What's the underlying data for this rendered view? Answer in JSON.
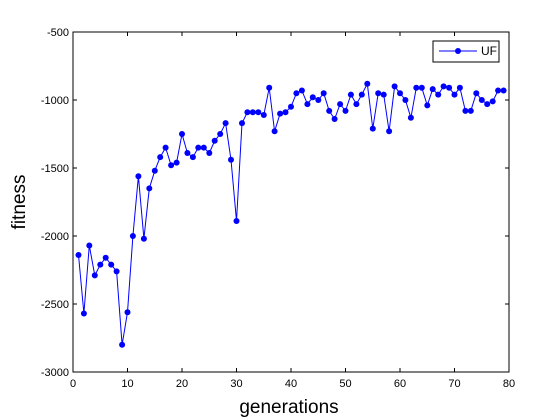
{
  "chart_data": {
    "type": "line",
    "title": "",
    "xlabel": "generations",
    "ylabel": "fitness",
    "xlim": [
      0,
      80
    ],
    "ylim": [
      -3000,
      -500
    ],
    "xticks": [
      0,
      10,
      20,
      30,
      40,
      50,
      60,
      70,
      80
    ],
    "yticks": [
      -3000,
      -2500,
      -2000,
      -1500,
      -1000,
      -500
    ],
    "grid": false,
    "legend_position": "top-right",
    "series": [
      {
        "name": "UF",
        "color": "#0000ff",
        "marker": "circle",
        "x": [
          1,
          2,
          3,
          4,
          5,
          6,
          7,
          8,
          9,
          10,
          11,
          12,
          13,
          14,
          15,
          16,
          17,
          18,
          19,
          20,
          21,
          22,
          23,
          24,
          25,
          26,
          27,
          28,
          29,
          30,
          31,
          32,
          33,
          34,
          35,
          36,
          37,
          38,
          39,
          40,
          41,
          42,
          43,
          44,
          45,
          46,
          47,
          48,
          49,
          50,
          51,
          52,
          53,
          54,
          55,
          56,
          57,
          58,
          59,
          60,
          61,
          62,
          63,
          64,
          65,
          66,
          67,
          68,
          69,
          70,
          71,
          72,
          73,
          74,
          75,
          76,
          77,
          78,
          79
        ],
        "y": [
          -2140,
          -2570,
          -2070,
          -2290,
          -2210,
          -2160,
          -2210,
          -2260,
          -2800,
          -2560,
          -2000,
          -1560,
          -2020,
          -1650,
          -1520,
          -1420,
          -1350,
          -1480,
          -1460,
          -1250,
          -1390,
          -1420,
          -1350,
          -1350,
          -1390,
          -1300,
          -1250,
          -1170,
          -1440,
          -1890,
          -1170,
          -1090,
          -1090,
          -1090,
          -1110,
          -910,
          -1230,
          -1100,
          -1090,
          -1050,
          -950,
          -930,
          -1030,
          -980,
          -1000,
          -950,
          -1080,
          -1140,
          -1030,
          -1080,
          -960,
          -1030,
          -960,
          -880,
          -1210,
          -950,
          -960,
          -1230,
          -900,
          -950,
          -1000,
          -1130,
          -910,
          -910,
          -1040,
          -920,
          -960,
          -900,
          -910,
          -960,
          -910,
          -1080,
          -1080,
          -950,
          -1000,
          -1030,
          -1010,
          -930,
          -930
        ]
      }
    ]
  }
}
